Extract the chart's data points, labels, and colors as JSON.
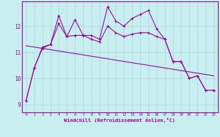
{
  "xlabel": "Windchill (Refroidissement éolien,°C)",
  "bg_color": "#c8eef0",
  "line_color": "#990099",
  "grid_color": "#aadddd",
  "x": [
    0,
    1,
    2,
    3,
    4,
    5,
    6,
    7,
    8,
    9,
    10,
    11,
    12,
    13,
    14,
    15,
    16,
    17,
    18,
    19,
    20,
    21,
    22,
    23
  ],
  "y_line1": [
    9.15,
    10.4,
    11.2,
    11.3,
    12.4,
    11.6,
    12.25,
    11.65,
    11.65,
    11.5,
    12.75,
    12.2,
    12.0,
    12.3,
    12.45,
    12.6,
    11.9,
    11.5,
    10.65,
    10.65,
    10.0,
    10.1,
    9.55,
    9.55
  ],
  "y_line2": [
    9.15,
    10.4,
    11.15,
    11.3,
    12.1,
    11.6,
    11.65,
    11.65,
    11.5,
    11.4,
    12.0,
    11.75,
    11.6,
    11.7,
    11.75,
    11.75,
    11.6,
    11.5,
    10.65,
    10.65,
    10.0,
    10.1,
    9.55,
    9.55
  ],
  "y_trend": [
    11.25,
    11.2,
    11.15,
    11.1,
    11.05,
    11.0,
    10.95,
    10.9,
    10.85,
    10.8,
    10.75,
    10.7,
    10.65,
    10.6,
    10.55,
    10.5,
    10.45,
    10.4,
    10.35,
    10.3,
    10.25,
    10.2,
    10.15,
    10.1
  ],
  "ylim": [
    8.7,
    12.95
  ],
  "yticks": [
    9,
    10,
    11,
    12
  ],
  "xticks": [
    0,
    1,
    2,
    3,
    4,
    5,
    6,
    7,
    8,
    9,
    10,
    11,
    12,
    13,
    14,
    15,
    16,
    17,
    18,
    19,
    20,
    21,
    22,
    23
  ]
}
